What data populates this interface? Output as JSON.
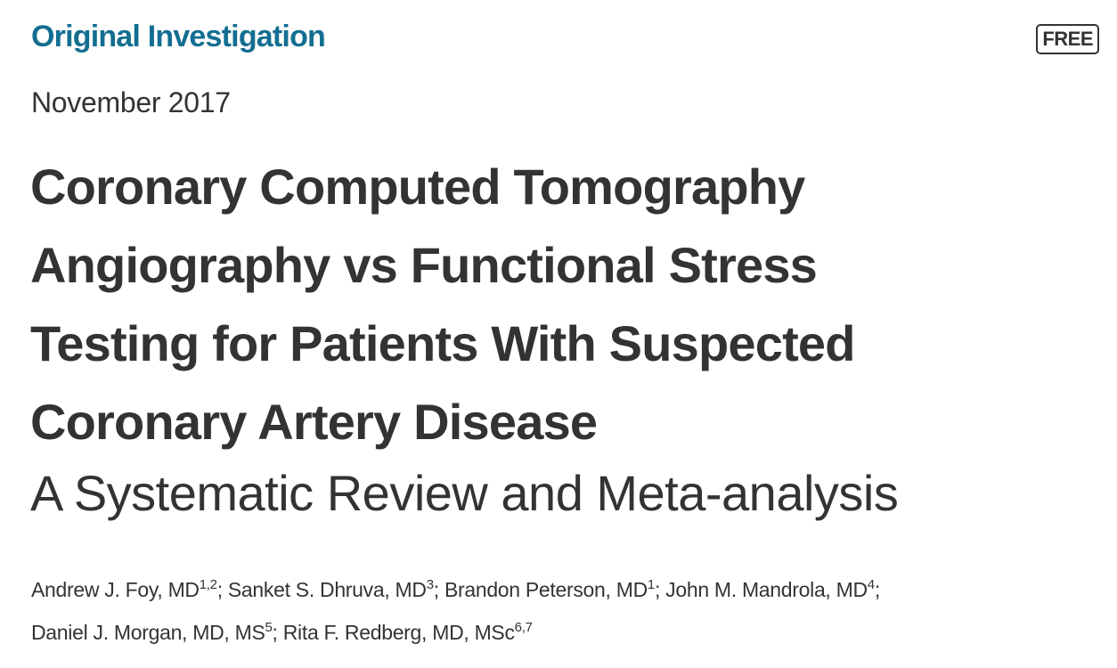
{
  "article": {
    "category": "Original Investigation",
    "access_badge": "FREE",
    "date": "November 2017",
    "title_lines": [
      "Coronary Computed Tomography",
      "Angiography vs Functional Stress",
      "Testing for Patients With Suspected",
      "Coronary Artery Disease"
    ],
    "subtitle": "A Systematic Review and Meta-analysis",
    "authors": [
      {
        "name": "Andrew J. Foy, MD",
        "affil": "1,2",
        "sep": "; "
      },
      {
        "name": "Sanket S. Dhruva, MD",
        "affil": "3",
        "sep": "; "
      },
      {
        "name": "Brandon Peterson, MD",
        "affil": "1",
        "sep": "; "
      },
      {
        "name": "John M. Mandrola, MD",
        "affil": "4",
        "sep": ";"
      },
      {
        "name": "Daniel J. Morgan, MD, MS",
        "affil": "5",
        "sep": "; "
      },
      {
        "name": "Rita F. Redberg, MD, MSc",
        "affil": "6,7",
        "sep": ""
      }
    ],
    "accent_color": "#136e91"
  }
}
